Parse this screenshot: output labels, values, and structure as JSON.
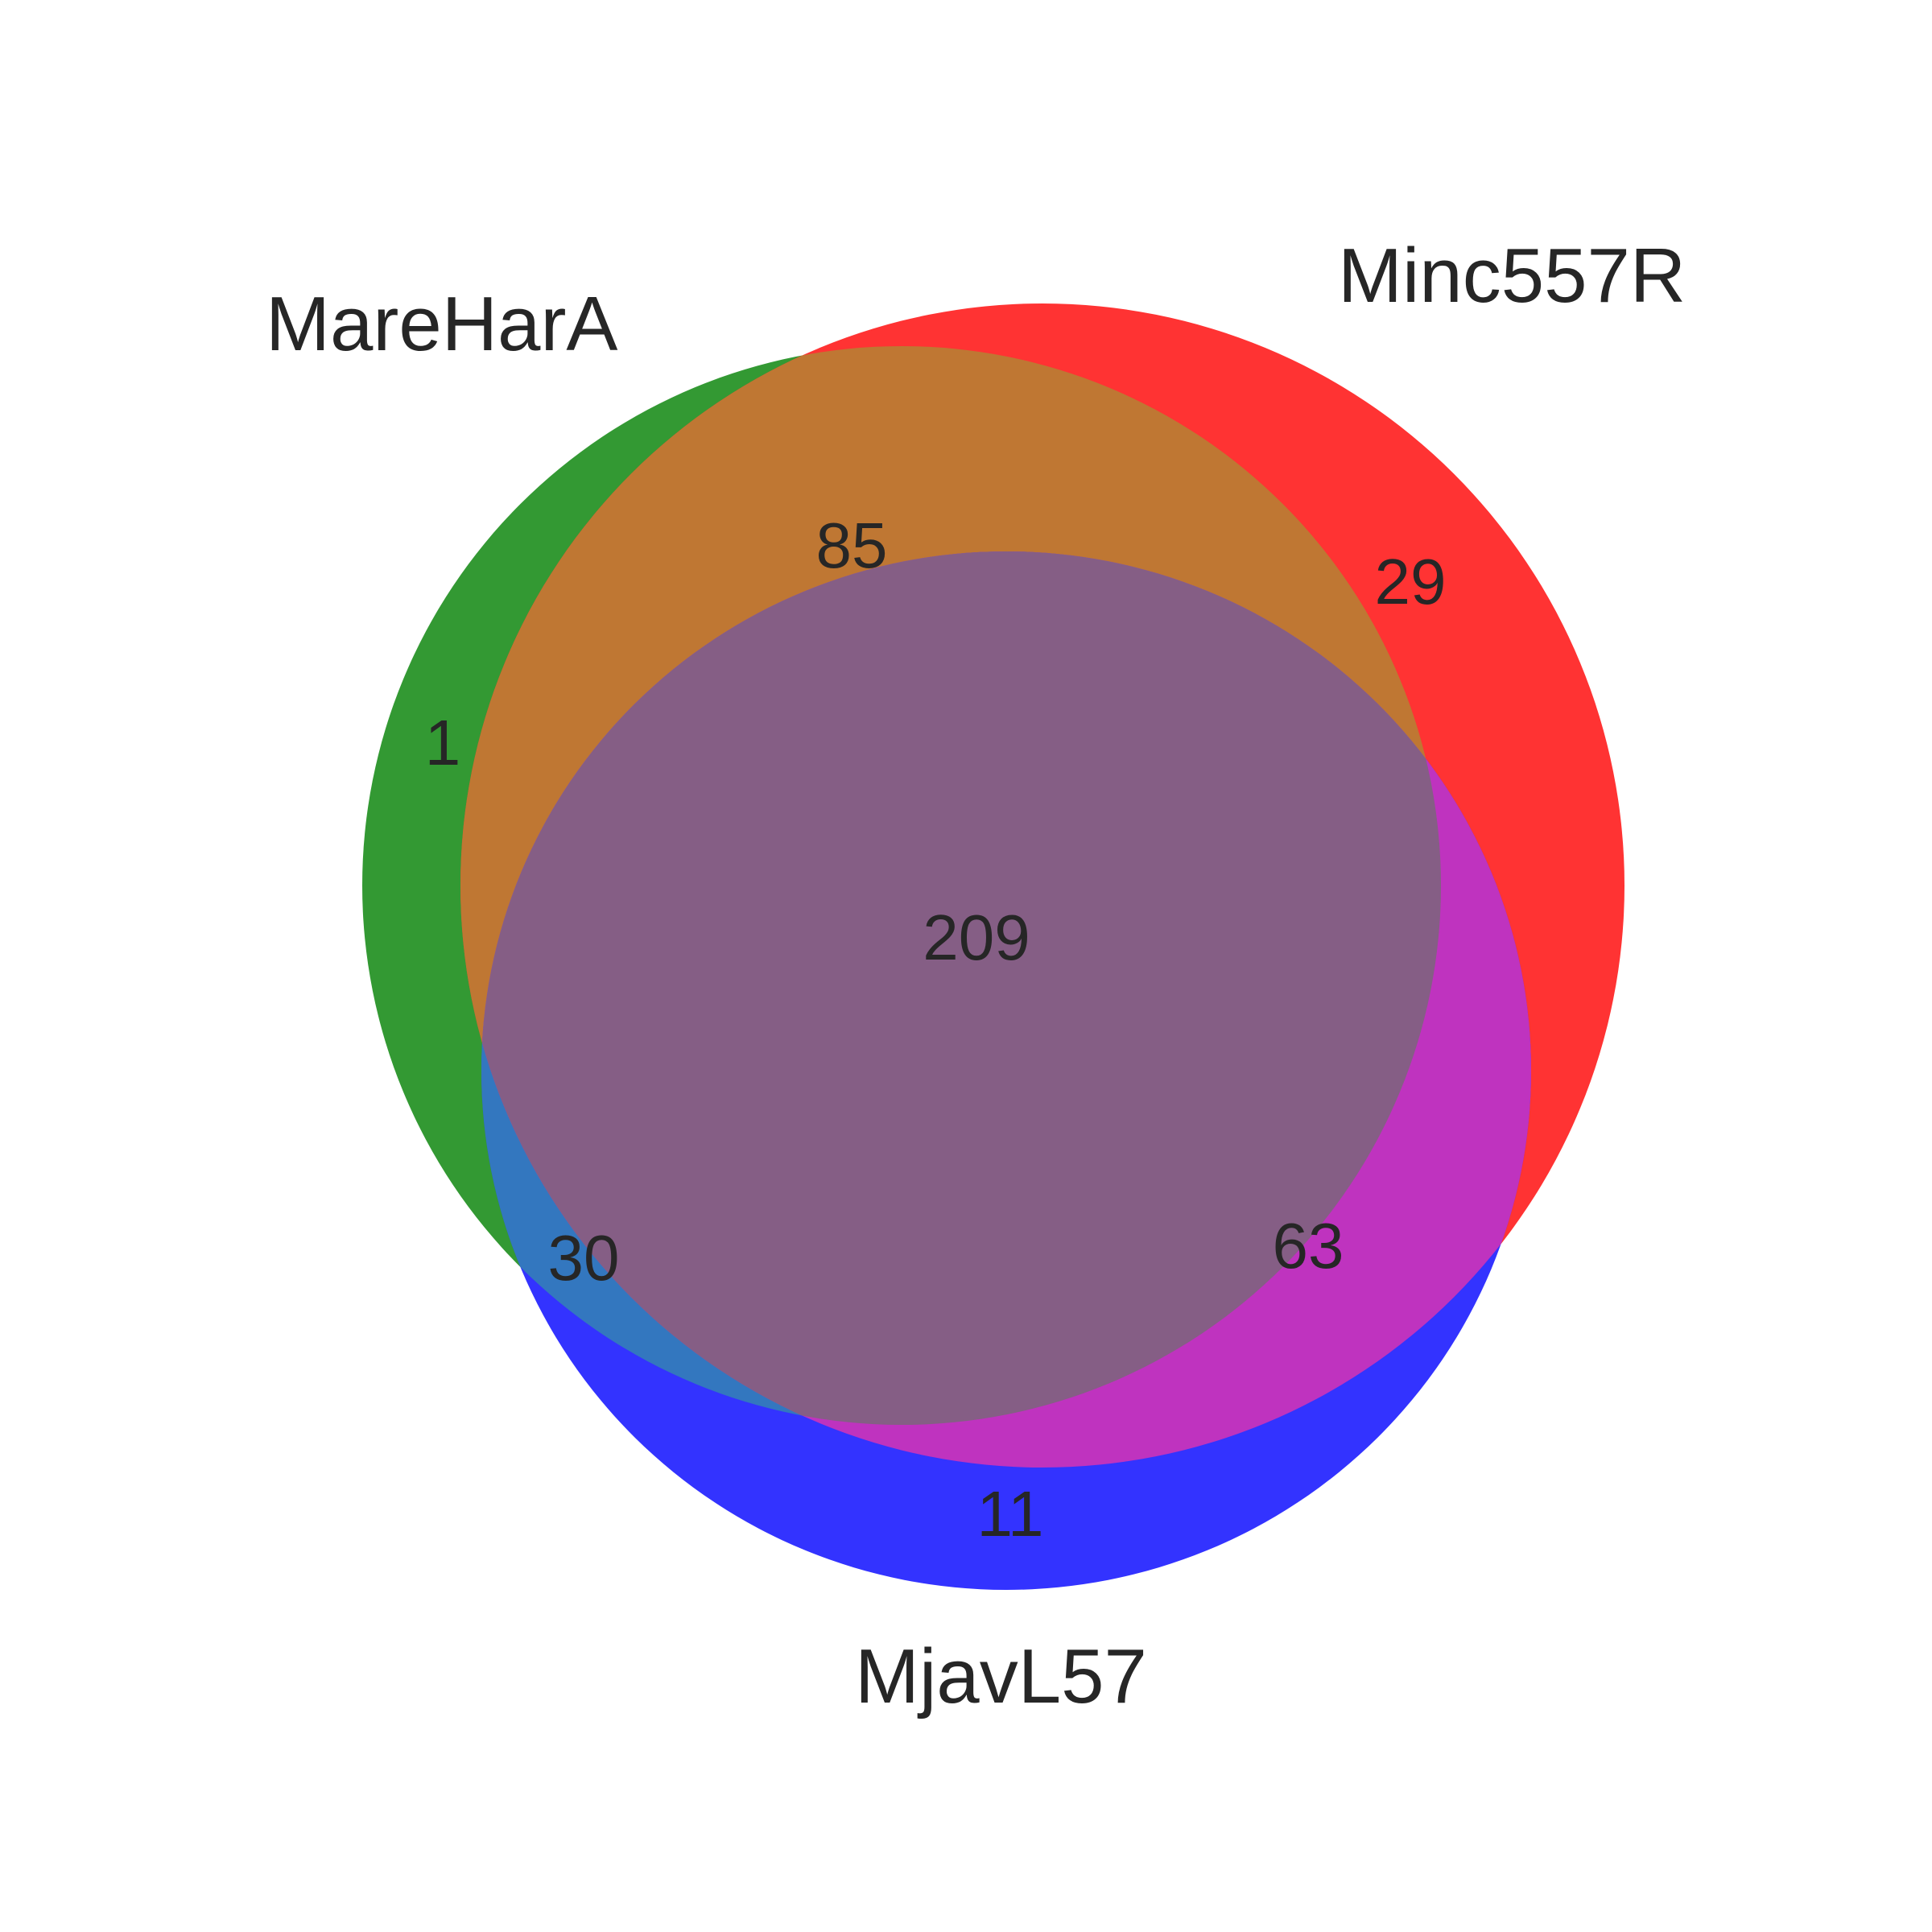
{
  "sets": [
    {
      "key": "A",
      "name": "MareHarA",
      "color": "#008000"
    },
    {
      "key": "B",
      "name": "Minc557R",
      "color": "#ff0000"
    },
    {
      "key": "C",
      "name": "MjavL57",
      "color": "#0000ff"
    }
  ],
  "regions": {
    "A_only": "1",
    "B_only": "29",
    "C_only": "11",
    "AB": "85",
    "AC": "30",
    "BC": "63",
    "ABC": "209"
  },
  "colors": {
    "A": "#339933",
    "B": "#ff3333",
    "C": "#3333ff",
    "AB": "#bf7733",
    "AC": "#3377bf",
    "BC": "#bf33bf",
    "ABC": "#855e85"
  }
}
